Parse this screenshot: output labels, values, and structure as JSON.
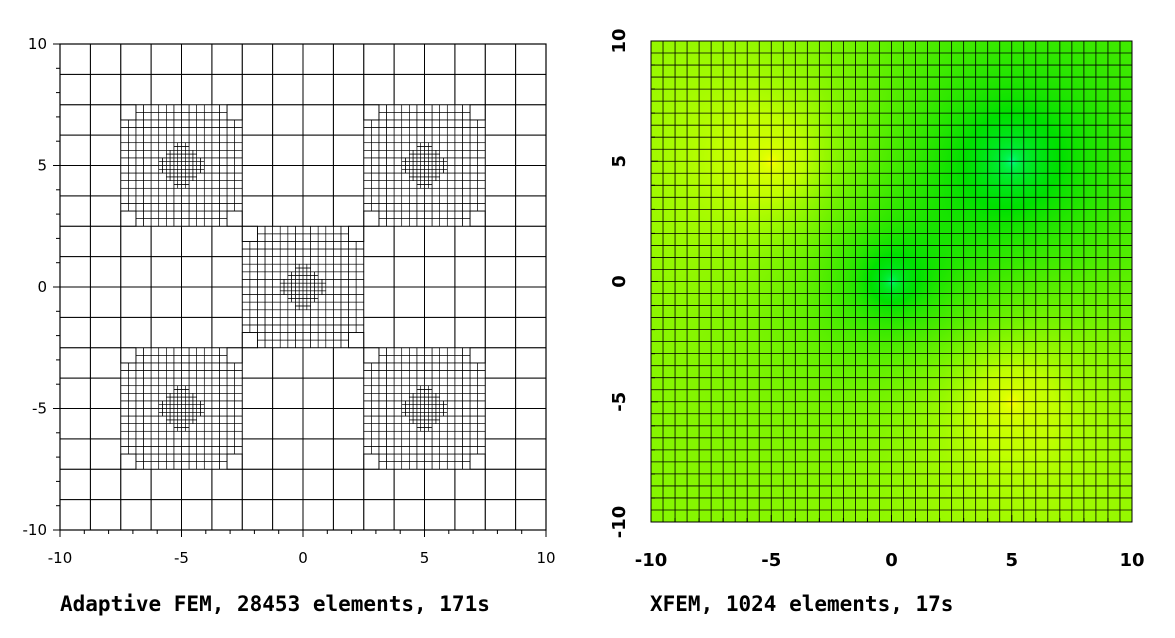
{
  "panels": [
    {
      "caption": "Adaptive FEM, 28453 elements, 171s",
      "x_ticks": [
        "-10",
        "-5",
        "0",
        "5",
        "10"
      ],
      "y_ticks": [
        "10",
        "5",
        "0",
        "-5",
        "-10"
      ],
      "domain": [
        -10,
        10
      ],
      "refinement_centers": [
        [
          -5,
          5
        ],
        [
          5,
          5
        ],
        [
          0,
          0
        ],
        [
          -5,
          -5
        ],
        [
          5,
          -5
        ]
      ],
      "coarse_divisions": 16,
      "colors": {
        "grid": "#000000",
        "background": "#ffffff"
      }
    },
    {
      "caption": "XFEM, 1024 elements, 17s",
      "x_ticks": [
        "-10",
        "-5",
        "0",
        "5",
        "10"
      ],
      "y_ticks": [
        "10",
        "5",
        "0",
        "-5",
        "-10"
      ],
      "domain": [
        -10,
        10
      ],
      "grid_divisions": 40,
      "field_sources": [
        {
          "x": -5,
          "y": 5,
          "sign": 1
        },
        {
          "x": 5,
          "y": 5,
          "sign": -1
        },
        {
          "x": 0,
          "y": 0,
          "sign": -1
        },
        {
          "x": 5,
          "y": -5,
          "sign": 1
        }
      ],
      "colormap": [
        "#00ffff",
        "#00ff80",
        "#00e000",
        "#c0ff00",
        "#ffff00",
        "#ffa000",
        "#ff0000"
      ]
    }
  ]
}
